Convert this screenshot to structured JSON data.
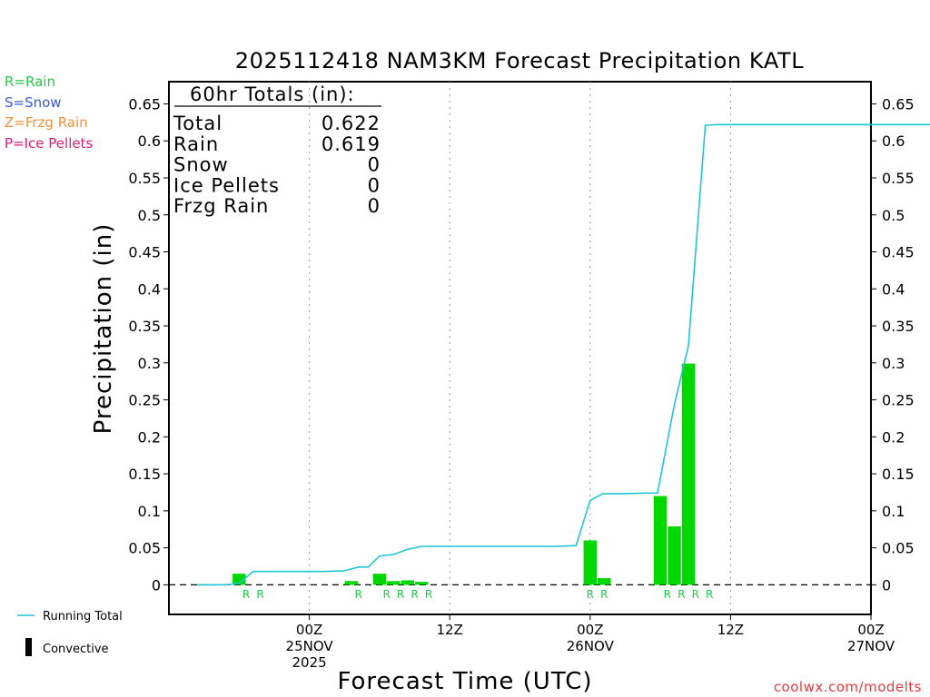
{
  "header": {
    "title": "2025112418 NAM3KM Forecast Precipitation KATL"
  },
  "ptype_legend": [
    {
      "label": "R=Rain",
      "color": "#22c94a"
    },
    {
      "label": "S=Snow",
      "color": "#3a5bd9"
    },
    {
      "label": "Z=Frzg Rain",
      "color": "#f0903a"
    },
    {
      "label": "P=Ice Pellets",
      "color": "#e0197a"
    }
  ],
  "bottom_legend": {
    "running_total_label": "Running Total",
    "running_total_color": "#1ec5d8",
    "convective_label": "Convective"
  },
  "credit": "coolwx.com/modelts",
  "totals_box": {
    "heading": "60hr Totals (in):",
    "rows": [
      {
        "label": "Total",
        "value": "0.622"
      },
      {
        "label": "Rain",
        "value": "0.619"
      },
      {
        "label": "Snow",
        "value": "0"
      },
      {
        "label": "Ice Pellets",
        "value": "0"
      },
      {
        "label": "Frzg Rain",
        "value": "0"
      }
    ]
  },
  "chart_data": {
    "type": "bar",
    "title": "2025112418 NAM3KM Forecast Precipitation KATL",
    "xlabel": "Forecast Time (UTC)",
    "ylabel": "Precipitation (in)",
    "x_unit": "forecast hour",
    "xlim": [
      -4,
      46
    ],
    "ylim": [
      -0.04,
      0.68
    ],
    "y_ticks": [
      0,
      0.05,
      0.1,
      0.15,
      0.2,
      0.25,
      0.3,
      0.35,
      0.4,
      0.45,
      0.5,
      0.55,
      0.6,
      0.65
    ],
    "y_tick_labels": [
      "0",
      "0.05",
      "0.1",
      "0.15",
      "0.2",
      "0.25",
      "0.3",
      "0.35",
      "0.4",
      "0.45",
      "0.5",
      "0.55",
      "0.6",
      "0.65"
    ],
    "x_ticks": [
      {
        "x": 6,
        "labels": [
          "00Z",
          "25NOV",
          "2025"
        ]
      },
      {
        "x": 16,
        "labels": [
          "12Z"
        ]
      },
      {
        "x": 26,
        "labels": [
          "00Z",
          "26NOV"
        ]
      },
      {
        "x": 36,
        "labels": [
          "12Z"
        ]
      },
      {
        "x": 46,
        "labels": [
          "00Z",
          "27NOV"
        ]
      }
    ],
    "grid": "vertical dotted at x ticks",
    "bar_color": "#00d800",
    "series": [
      {
        "name": "Running Total",
        "type": "line",
        "color": "#1ec5d8",
        "points": [
          [
            -2,
            0
          ],
          [
            0,
            0
          ],
          [
            1,
            0.002
          ],
          [
            1.8,
            0.015
          ],
          [
            2,
            0.018
          ],
          [
            3,
            0.018
          ],
          [
            7,
            0.018
          ],
          [
            8.5,
            0.019
          ],
          [
            9.5,
            0.024
          ],
          [
            10.2,
            0.024
          ],
          [
            11,
            0.039
          ],
          [
            12,
            0.041
          ],
          [
            13,
            0.048
          ],
          [
            14,
            0.052
          ],
          [
            17,
            0.052
          ],
          [
            23.5,
            0.052
          ],
          [
            25,
            0.053
          ],
          [
            26,
            0.114
          ],
          [
            26.9,
            0.123
          ],
          [
            28,
            0.123
          ],
          [
            30,
            0.124
          ],
          [
            30.8,
            0.124
          ],
          [
            32,
            0.244
          ],
          [
            33,
            0.323
          ],
          [
            34.2,
            0.621
          ],
          [
            35,
            0.622
          ],
          [
            40,
            0.622
          ],
          [
            46,
            0.622
          ],
          [
            51,
            0.622
          ]
        ]
      }
    ],
    "bars": [
      {
        "x": 1,
        "value": 0.015,
        "ptype": "R"
      },
      {
        "x": 9,
        "value": 0.005,
        "ptype": "R"
      },
      {
        "x": 11,
        "value": 0.015,
        "ptype": "R"
      },
      {
        "x": 12,
        "value": 0.005,
        "ptype": "R"
      },
      {
        "x": 13,
        "value": 0.006,
        "ptype": "R"
      },
      {
        "x": 14,
        "value": 0.004,
        "ptype": "R"
      },
      {
        "x": 26,
        "value": 0.06,
        "ptype": "R"
      },
      {
        "x": 27,
        "value": 0.009,
        "ptype": "R"
      },
      {
        "x": 31,
        "value": 0.12,
        "ptype": "R"
      },
      {
        "x": 32,
        "value": 0.079,
        "ptype": "R"
      },
      {
        "x": 33,
        "value": 0.299,
        "ptype": "R"
      }
    ],
    "ptype_markers": [
      {
        "x": 1.5,
        "label": "R"
      },
      {
        "x": 2.5,
        "label": "R"
      },
      {
        "x": 9.5,
        "label": "R"
      },
      {
        "x": 11.5,
        "label": "R"
      },
      {
        "x": 12.5,
        "label": "R"
      },
      {
        "x": 13.5,
        "label": "R"
      },
      {
        "x": 14.5,
        "label": "R"
      },
      {
        "x": 26.0,
        "label": "R"
      },
      {
        "x": 27.0,
        "label": "R"
      },
      {
        "x": 31.5,
        "label": "R"
      },
      {
        "x": 32.5,
        "label": "R"
      },
      {
        "x": 33.5,
        "label": "R"
      },
      {
        "x": 34.5,
        "label": "R"
      }
    ]
  }
}
